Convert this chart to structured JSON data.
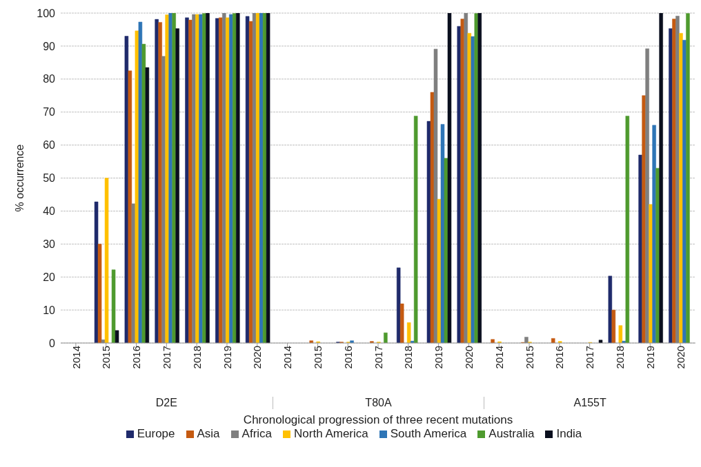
{
  "chart_data": {
    "type": "bar",
    "xlabel": "Chronological progression of three recent mutations",
    "ylabel": "% occurrence",
    "categories": [
      "2014",
      "2015",
      "2016",
      "2017",
      "2018",
      "2019",
      "2020",
      "2014",
      "2015",
      "2016",
      "2017",
      "2018",
      "2019",
      "2020",
      "2014",
      "2015",
      "2016",
      "2017",
      "2018",
      "2019",
      "2020"
    ],
    "annotations": [
      "D2E",
      "T80A",
      "A155T"
    ],
    "series": [
      {
        "name": "Europe",
        "color": "#1f2a6b",
        "values": [
          0,
          42.8,
          93,
          98.1,
          98.6,
          98.4,
          99,
          0,
          0,
          0.3,
          0,
          22.8,
          67.2,
          96,
          0,
          0,
          0,
          0,
          20.3,
          57,
          95.3
        ]
      },
      {
        "name": "Asia",
        "color": "#c55a11",
        "values": [
          0,
          30,
          82.5,
          97.2,
          97.9,
          98.6,
          97.5,
          0,
          0.7,
          0.3,
          0.5,
          11.9,
          76,
          98.2,
          1.1,
          0.2,
          1.4,
          0,
          10,
          75,
          98.2
        ]
      },
      {
        "name": "Africa",
        "color": "#7f7f7f",
        "values": [
          0,
          1,
          42.2,
          86.9,
          99.6,
          100,
          100,
          0,
          0,
          0,
          0,
          0,
          89.1,
          100,
          0,
          1.8,
          0,
          0,
          0,
          89.2,
          99.1
        ]
      },
      {
        "name": "North America",
        "color": "#ffc000",
        "values": [
          0,
          50,
          94.6,
          99.5,
          99.6,
          98.6,
          100,
          0,
          0.4,
          0.3,
          0.3,
          6.2,
          43.6,
          93.9,
          0.4,
          0.3,
          0.5,
          0.2,
          5.3,
          42,
          93.9
        ]
      },
      {
        "name": "South America",
        "color": "#2e75b6",
        "values": [
          0,
          0,
          97.3,
          100,
          99.6,
          99.6,
          100,
          0,
          0,
          0.7,
          0,
          0.6,
          66.3,
          92.9,
          0,
          0,
          0,
          0,
          0.6,
          66,
          91.8
        ]
      },
      {
        "name": "Australia",
        "color": "#4e9a2e",
        "values": [
          0,
          22.2,
          90.6,
          100,
          99.9,
          99.9,
          100,
          0,
          0,
          0,
          3.1,
          68.8,
          56,
          99.9,
          0,
          0,
          0,
          0,
          68.8,
          53,
          99.9
        ]
      },
      {
        "name": "India",
        "color": "#0a0f1e",
        "values": [
          0,
          3.8,
          83.5,
          95.3,
          100,
          100,
          100,
          0,
          0,
          0,
          0,
          0,
          100,
          100,
          0,
          0,
          0,
          0.9,
          0,
          100,
          null
        ]
      }
    ],
    "ylim": [
      0,
      100
    ],
    "yticks": [
      0,
      10,
      20,
      30,
      40,
      50,
      60,
      70,
      80,
      90,
      100
    ],
    "grid": "y",
    "legend": "bottom"
  }
}
